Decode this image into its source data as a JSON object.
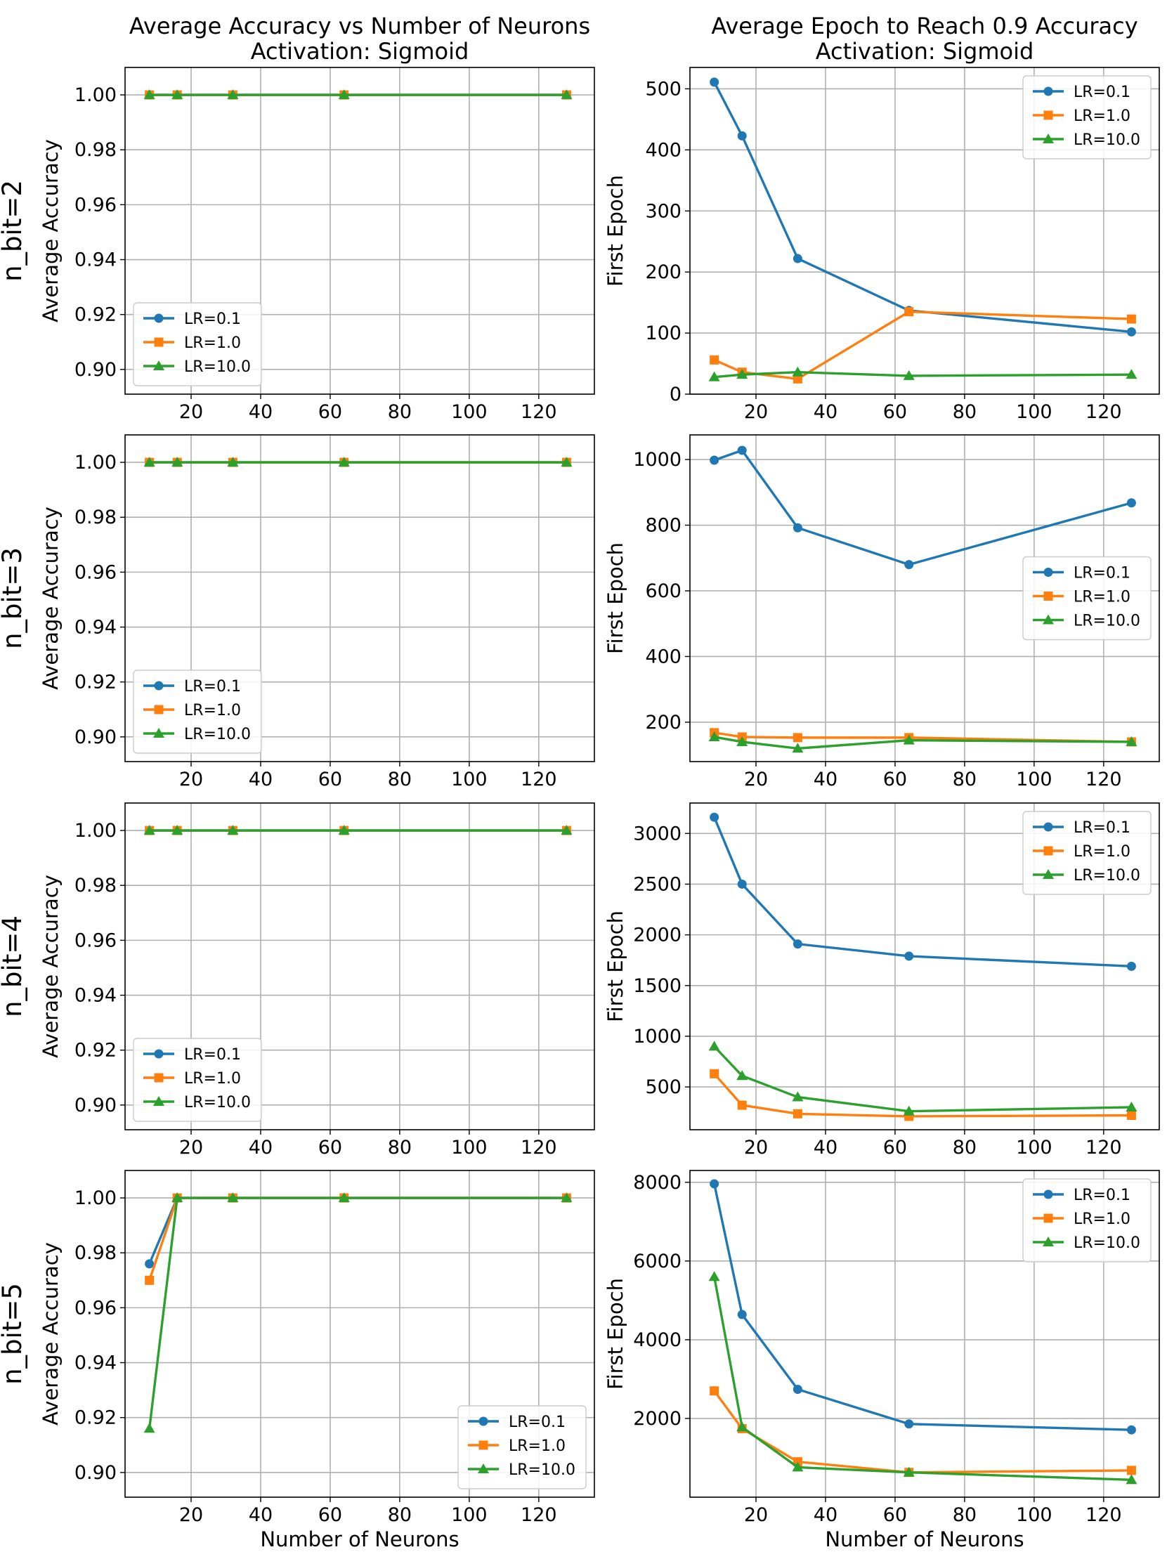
{
  "figure": {
    "x_tick_labels": [
      "20",
      "40",
      "60",
      "80",
      "100",
      "120"
    ],
    "x_label": "Number of Neurons"
  },
  "chart_data": [
    {
      "type": "line",
      "row": 0,
      "col": 0,
      "title": "Average Accuracy vs Number of Neurons\nActivation: Sigmoid",
      "row_label": "n_bit=2",
      "xlabel": "",
      "ylabel": "Average Accuracy",
      "xlim": [
        1,
        136
      ],
      "ylim": [
        0.891,
        1.01
      ],
      "xticks": [
        20,
        40,
        60,
        80,
        100,
        120
      ],
      "yticks": [
        0.9,
        0.92,
        0.94,
        0.96,
        0.98,
        1.0
      ],
      "ytick_labels": [
        "0.90",
        "0.92",
        "0.94",
        "0.96",
        "0.98",
        "1.00"
      ],
      "legend": "lower-left",
      "series": [
        {
          "name": "LR=0.1",
          "color": "#1f77b4",
          "marker": "circle",
          "x": [
            8,
            16,
            32,
            64,
            128
          ],
          "values": [
            1.0,
            1.0,
            1.0,
            1.0,
            1.0
          ]
        },
        {
          "name": "LR=1.0",
          "color": "#ff7f0e",
          "marker": "square",
          "x": [
            8,
            16,
            32,
            64,
            128
          ],
          "values": [
            1.0,
            1.0,
            1.0,
            1.0,
            1.0
          ]
        },
        {
          "name": "LR=10.0",
          "color": "#2ca02c",
          "marker": "triangle",
          "x": [
            8,
            16,
            32,
            64,
            128
          ],
          "values": [
            1.0,
            1.0,
            1.0,
            1.0,
            1.0
          ]
        }
      ]
    },
    {
      "type": "line",
      "row": 0,
      "col": 1,
      "title": "Average Epoch to Reach 0.9 Accuracy\nActivation: Sigmoid",
      "xlabel": "",
      "ylabel": "First Epoch",
      "xlim": [
        1,
        136
      ],
      "ylim": [
        0,
        535
      ],
      "xticks": [
        20,
        40,
        60,
        80,
        100,
        120
      ],
      "yticks": [
        0,
        100,
        200,
        300,
        400,
        500
      ],
      "ytick_labels": [
        "0",
        "100",
        "200",
        "300",
        "400",
        "500"
      ],
      "legend": "top-right",
      "series": [
        {
          "name": "LR=0.1",
          "color": "#1f77b4",
          "marker": "circle",
          "x": [
            8,
            16,
            32,
            64,
            128
          ],
          "values": [
            511,
            423,
            222,
            137,
            102
          ]
        },
        {
          "name": "LR=1.0",
          "color": "#ff7f0e",
          "marker": "square",
          "x": [
            8,
            16,
            32,
            64,
            128
          ],
          "values": [
            56,
            36,
            25,
            135,
            123
          ]
        },
        {
          "name": "LR=10.0",
          "color": "#2ca02c",
          "marker": "triangle",
          "x": [
            8,
            16,
            32,
            64,
            128
          ],
          "values": [
            28,
            32,
            36,
            30,
            32
          ]
        }
      ]
    },
    {
      "type": "line",
      "row": 1,
      "col": 0,
      "title": "",
      "row_label": "n_bit=3",
      "xlabel": "",
      "ylabel": "Average Accuracy",
      "xlim": [
        1,
        136
      ],
      "ylim": [
        0.891,
        1.01
      ],
      "xticks": [
        20,
        40,
        60,
        80,
        100,
        120
      ],
      "yticks": [
        0.9,
        0.92,
        0.94,
        0.96,
        0.98,
        1.0
      ],
      "ytick_labels": [
        "0.90",
        "0.92",
        "0.94",
        "0.96",
        "0.98",
        "1.00"
      ],
      "legend": "lower-left",
      "series": [
        {
          "name": "LR=0.1",
          "color": "#1f77b4",
          "marker": "circle",
          "x": [
            8,
            16,
            32,
            64,
            128
          ],
          "values": [
            1.0,
            1.0,
            1.0,
            1.0,
            1.0
          ]
        },
        {
          "name": "LR=1.0",
          "color": "#ff7f0e",
          "marker": "square",
          "x": [
            8,
            16,
            32,
            64,
            128
          ],
          "values": [
            1.0,
            1.0,
            1.0,
            1.0,
            1.0
          ]
        },
        {
          "name": "LR=10.0",
          "color": "#2ca02c",
          "marker": "triangle",
          "x": [
            8,
            16,
            32,
            64,
            128
          ],
          "values": [
            1.0,
            1.0,
            1.0,
            1.0,
            1.0
          ]
        }
      ]
    },
    {
      "type": "line",
      "row": 1,
      "col": 1,
      "title": "",
      "xlabel": "",
      "ylabel": "First Epoch",
      "xlim": [
        1,
        136
      ],
      "ylim": [
        80,
        1075
      ],
      "xticks": [
        20,
        40,
        60,
        80,
        100,
        120
      ],
      "yticks": [
        200,
        400,
        600,
        800,
        1000
      ],
      "ytick_labels": [
        "200",
        "400",
        "600",
        "800",
        "1000"
      ],
      "legend": "center-right",
      "series": [
        {
          "name": "LR=0.1",
          "color": "#1f77b4",
          "marker": "circle",
          "x": [
            8,
            16,
            32,
            64,
            128
          ],
          "values": [
            998,
            1028,
            792,
            680,
            868
          ]
        },
        {
          "name": "LR=1.0",
          "color": "#ff7f0e",
          "marker": "square",
          "x": [
            8,
            16,
            32,
            64,
            128
          ],
          "values": [
            168,
            155,
            153,
            153,
            140
          ]
        },
        {
          "name": "LR=10.0",
          "color": "#2ca02c",
          "marker": "triangle",
          "x": [
            8,
            16,
            32,
            64,
            128
          ],
          "values": [
            155,
            140,
            120,
            145,
            140
          ]
        }
      ]
    },
    {
      "type": "line",
      "row": 2,
      "col": 0,
      "title": "",
      "row_label": "n_bit=4",
      "xlabel": "",
      "ylabel": "Average Accuracy",
      "xlim": [
        1,
        136
      ],
      "ylim": [
        0.891,
        1.01
      ],
      "xticks": [
        20,
        40,
        60,
        80,
        100,
        120
      ],
      "yticks": [
        0.9,
        0.92,
        0.94,
        0.96,
        0.98,
        1.0
      ],
      "ytick_labels": [
        "0.90",
        "0.92",
        "0.94",
        "0.96",
        "0.98",
        "1.00"
      ],
      "legend": "lower-left",
      "series": [
        {
          "name": "LR=0.1",
          "color": "#1f77b4",
          "marker": "circle",
          "x": [
            8,
            16,
            32,
            64,
            128
          ],
          "values": [
            1.0,
            1.0,
            1.0,
            1.0,
            1.0
          ]
        },
        {
          "name": "LR=1.0",
          "color": "#ff7f0e",
          "marker": "square",
          "x": [
            8,
            16,
            32,
            64,
            128
          ],
          "values": [
            1.0,
            1.0,
            1.0,
            1.0,
            1.0
          ]
        },
        {
          "name": "LR=10.0",
          "color": "#2ca02c",
          "marker": "triangle",
          "x": [
            8,
            16,
            32,
            64,
            128
          ],
          "values": [
            1.0,
            1.0,
            1.0,
            1.0,
            1.0
          ]
        }
      ]
    },
    {
      "type": "line",
      "row": 2,
      "col": 1,
      "title": "",
      "xlabel": "",
      "ylabel": "First Epoch",
      "xlim": [
        1,
        136
      ],
      "ylim": [
        78,
        3300
      ],
      "xticks": [
        20,
        40,
        60,
        80,
        100,
        120
      ],
      "yticks": [
        500,
        1000,
        1500,
        2000,
        2500,
        3000
      ],
      "ytick_labels": [
        "500",
        "1000",
        "1500",
        "2000",
        "2500",
        "3000"
      ],
      "legend": "top-right",
      "series": [
        {
          "name": "LR=0.1",
          "color": "#1f77b4",
          "marker": "circle",
          "x": [
            8,
            16,
            32,
            64,
            128
          ],
          "values": [
            3160,
            2500,
            1910,
            1790,
            1690
          ]
        },
        {
          "name": "LR=1.0",
          "color": "#ff7f0e",
          "marker": "square",
          "x": [
            8,
            16,
            32,
            64,
            128
          ],
          "values": [
            630,
            320,
            235,
            210,
            220
          ]
        },
        {
          "name": "LR=10.0",
          "color": "#2ca02c",
          "marker": "triangle",
          "x": [
            8,
            16,
            32,
            64,
            128
          ],
          "values": [
            900,
            610,
            400,
            260,
            300
          ]
        }
      ]
    },
    {
      "type": "line",
      "row": 3,
      "col": 0,
      "title": "",
      "row_label": "n_bit=5",
      "xlabel": "Number of Neurons",
      "ylabel": "Average Accuracy",
      "xlim": [
        1,
        136
      ],
      "ylim": [
        0.891,
        1.01
      ],
      "xticks": [
        20,
        40,
        60,
        80,
        100,
        120
      ],
      "yticks": [
        0.9,
        0.92,
        0.94,
        0.96,
        0.98,
        1.0
      ],
      "ytick_labels": [
        "0.90",
        "0.92",
        "0.94",
        "0.96",
        "0.98",
        "1.00"
      ],
      "legend": "lower-right",
      "series": [
        {
          "name": "LR=0.1",
          "color": "#1f77b4",
          "marker": "circle",
          "x": [
            8,
            16,
            32,
            64,
            128
          ],
          "values": [
            0.976,
            1.0,
            1.0,
            1.0,
            1.0
          ]
        },
        {
          "name": "LR=1.0",
          "color": "#ff7f0e",
          "marker": "square",
          "x": [
            8,
            16,
            32,
            64,
            128
          ],
          "values": [
            0.97,
            1.0,
            1.0,
            1.0,
            1.0
          ]
        },
        {
          "name": "LR=10.0",
          "color": "#2ca02c",
          "marker": "triangle",
          "x": [
            8,
            16,
            32,
            64,
            128
          ],
          "values": [
            0.916,
            1.0,
            1.0,
            1.0,
            1.0
          ]
        }
      ]
    },
    {
      "type": "line",
      "row": 3,
      "col": 1,
      "title": "",
      "xlabel": "Number of Neurons",
      "ylabel": "First Epoch",
      "xlim": [
        1,
        136
      ],
      "ylim": [
        0,
        8300
      ],
      "xticks": [
        20,
        40,
        60,
        80,
        100,
        120
      ],
      "yticks": [
        2000,
        4000,
        6000,
        8000
      ],
      "ytick_labels": [
        "2000",
        "4000",
        "6000",
        "8000"
      ],
      "legend": "top-right",
      "series": [
        {
          "name": "LR=0.1",
          "color": "#1f77b4",
          "marker": "circle",
          "x": [
            8,
            16,
            32,
            64,
            128
          ],
          "values": [
            7960,
            4640,
            2740,
            1860,
            1710
          ]
        },
        {
          "name": "LR=1.0",
          "color": "#ff7f0e",
          "marker": "square",
          "x": [
            8,
            16,
            32,
            64,
            128
          ],
          "values": [
            2700,
            1740,
            900,
            630,
            680
          ]
        },
        {
          "name": "LR=10.0",
          "color": "#2ca02c",
          "marker": "triangle",
          "x": [
            8,
            16,
            32,
            64,
            128
          ],
          "values": [
            5600,
            1780,
            760,
            630,
            440
          ]
        }
      ]
    }
  ]
}
